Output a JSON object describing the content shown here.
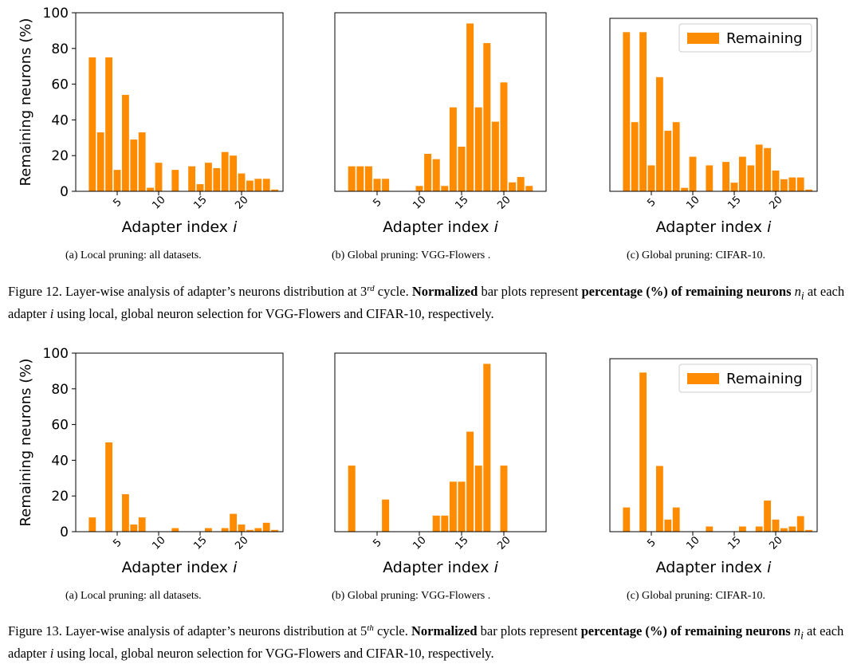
{
  "chart_data": [
    {
      "type": "bar",
      "id": "fig12a",
      "x": [
        2,
        3,
        4,
        5,
        6,
        7,
        8,
        9,
        10,
        11,
        12,
        13,
        14,
        15,
        16,
        17,
        18,
        19,
        20,
        21,
        22,
        23,
        24
      ],
      "values": [
        75,
        33,
        75,
        12,
        54,
        29,
        33,
        2,
        16,
        0,
        12,
        0,
        14,
        4,
        16,
        13,
        22,
        20,
        10,
        6,
        7,
        7,
        1
      ],
      "ylabel": "Remaining neurons (%)",
      "xlabel": "Adapter index",
      "xlabel_var": "i",
      "ylim": [
        0,
        100
      ],
      "xlim": [
        0,
        25
      ],
      "yticks": [
        "0",
        "20",
        "40",
        "60",
        "80",
        "100"
      ],
      "xticks": [
        "5",
        "10",
        "15",
        "20"
      ],
      "legend": null
    },
    {
      "type": "bar",
      "id": "fig12b",
      "x": [
        2,
        3,
        4,
        5,
        6,
        7,
        8,
        9,
        10,
        11,
        12,
        13,
        14,
        15,
        16,
        17,
        18,
        19,
        20,
        21,
        22,
        23,
        24
      ],
      "values": [
        14,
        14,
        14,
        7,
        7,
        0,
        0,
        0,
        3,
        21,
        18,
        3,
        47,
        25,
        94,
        47,
        83,
        39,
        61,
        5,
        8,
        3,
        0
      ],
      "ylabel": "",
      "xlabel": "Adapter index",
      "xlabel_var": "i",
      "ylim": [
        0,
        100
      ],
      "xlim": [
        0,
        25
      ],
      "yticks": [],
      "xticks": [
        "5",
        "10",
        "15",
        "20"
      ],
      "legend": null
    },
    {
      "type": "bar",
      "id": "fig12c",
      "x": [
        2,
        3,
        4,
        5,
        6,
        7,
        8,
        9,
        10,
        11,
        12,
        13,
        14,
        15,
        16,
        17,
        18,
        19,
        20,
        21,
        22,
        23,
        24
      ],
      "values": [
        92,
        40,
        92,
        15,
        66,
        35,
        40,
        2,
        20,
        0,
        15,
        0,
        17,
        5,
        20,
        15,
        27,
        25,
        12,
        7,
        8,
        8,
        1
      ],
      "ylabel": "",
      "xlabel": "Adapter index",
      "xlabel_var": "i",
      "ylim": [
        0,
        100
      ],
      "xlim": [
        0,
        25
      ],
      "yticks": [],
      "xticks": [
        "5",
        "10",
        "15",
        "20"
      ],
      "legend": "Remaining"
    },
    {
      "type": "bar",
      "id": "fig13a",
      "x": [
        2,
        3,
        4,
        5,
        6,
        7,
        8,
        9,
        10,
        11,
        12,
        13,
        14,
        15,
        16,
        17,
        18,
        19,
        20,
        21,
        22,
        23,
        24
      ],
      "values": [
        8,
        0,
        50,
        0,
        21,
        4,
        8,
        0,
        0,
        0,
        2,
        0,
        0,
        0,
        2,
        0,
        2,
        10,
        4,
        1,
        2,
        5,
        1
      ],
      "ylabel": "Remaining neurons (%)",
      "xlabel": "Adapter index",
      "xlabel_var": "i",
      "ylim": [
        0,
        100
      ],
      "xlim": [
        0,
        25
      ],
      "yticks": [
        "0",
        "20",
        "40",
        "60",
        "80",
        "100"
      ],
      "xticks": [
        "5",
        "10",
        "15",
        "20"
      ],
      "legend": null
    },
    {
      "type": "bar",
      "id": "fig13b",
      "x": [
        2,
        3,
        4,
        5,
        6,
        7,
        8,
        9,
        10,
        11,
        12,
        13,
        14,
        15,
        16,
        17,
        18,
        19,
        20,
        21,
        22,
        23,
        24
      ],
      "values": [
        37,
        0,
        0,
        0,
        18,
        0,
        0,
        0,
        0,
        0,
        9,
        9,
        28,
        28,
        56,
        37,
        94,
        0,
        37,
        0,
        0,
        0,
        0
      ],
      "ylabel": "",
      "xlabel": "Adapter index",
      "xlabel_var": "i",
      "ylim": [
        0,
        100
      ],
      "xlim": [
        0,
        25
      ],
      "yticks": [],
      "xticks": [
        "5",
        "10",
        "15",
        "20"
      ],
      "legend": null
    },
    {
      "type": "bar",
      "id": "fig13c",
      "x": [
        2,
        3,
        4,
        5,
        6,
        7,
        8,
        9,
        10,
        11,
        12,
        13,
        14,
        15,
        16,
        17,
        18,
        19,
        20,
        21,
        22,
        23,
        24
      ],
      "values": [
        14,
        0,
        92,
        0,
        38,
        7,
        14,
        0,
        0,
        0,
        3,
        0,
        0,
        0,
        3,
        0,
        3,
        18,
        7,
        2,
        3,
        9,
        1
      ],
      "ylabel": "",
      "xlabel": "Adapter index",
      "xlabel_var": "i",
      "ylim": [
        0,
        100
      ],
      "xlim": [
        0,
        25
      ],
      "yticks": [],
      "xticks": [
        "5",
        "10",
        "15",
        "20"
      ],
      "legend": "Remaining"
    }
  ],
  "colors": {
    "bar": "#ff8c00",
    "axis": "#000000"
  },
  "subcaptions": {
    "a": "(a) Local pruning: all datasets.",
    "b": "(b) Global pruning: VGG-Flowers .",
    "c": "(c) Global pruning: CIFAR-10."
  },
  "fig12_caption": {
    "prefix": "Figure 12. Layer-wise analysis of adapter’s neurons distribution at 3",
    "sup": "rd",
    "p1": " cycle. ",
    "b1": "Normalized",
    "p2": " bar plots represent ",
    "b2": "percentage (%) of remaining neurons",
    "p3": " ",
    "var_n": "n",
    "sub_i": "i",
    "p4": " at each adapter ",
    "var_i": "i",
    "p5": " using local, global neuron selection for VGG-Flowers and CIFAR-10, respectively."
  },
  "fig13_caption": {
    "prefix": "Figure 13. Layer-wise analysis of adapter’s neurons distribution at 5",
    "sup": "th",
    "p1": " cycle. ",
    "b1": "Normalized",
    "p2": " bar plots represent ",
    "b2": "percentage (%) of remaining neurons",
    "p3": " ",
    "var_n": "n",
    "sub_i": "i",
    "p4": " at each adapter ",
    "var_i": "i",
    "p5": " using local, global neuron selection for VGG-Flowers and CIFAR-10, respectively."
  }
}
